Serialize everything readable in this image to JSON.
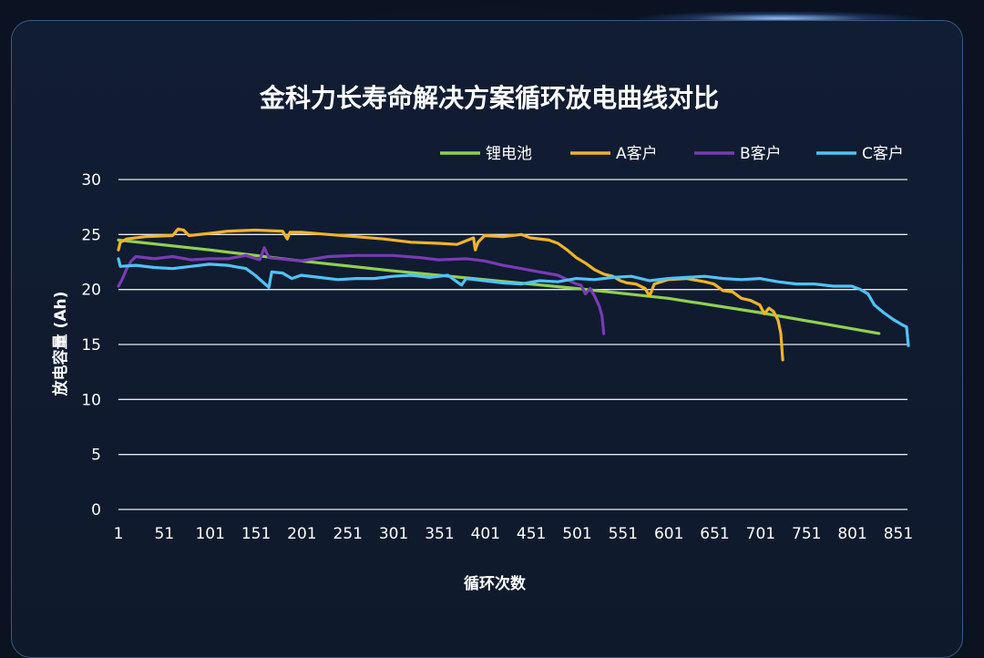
{
  "chart_data": {
    "type": "line",
    "title": "金科力长寿命解决方案循环放电曲线对比",
    "xlabel": "循环次数",
    "ylabel": "放电容量 (Ah)",
    "xlim": [
      1,
      861
    ],
    "ylim": [
      0,
      30
    ],
    "x_ticks": [
      "1",
      "51",
      "101",
      "151",
      "201",
      "251",
      "301",
      "351",
      "401",
      "451",
      "501",
      "551",
      "601",
      "651",
      "701",
      "751",
      "801",
      "851"
    ],
    "y_ticks": [
      "0",
      "5",
      "10",
      "15",
      "20",
      "25",
      "30"
    ],
    "grid": "horizontal",
    "legend_position": "top-right",
    "series": [
      {
        "name": "锂电池",
        "color": "#8fd14f",
        "points": [
          [
            1,
            24.5
          ],
          [
            100,
            23.6
          ],
          [
            200,
            22.6
          ],
          [
            300,
            21.7
          ],
          [
            400,
            20.9
          ],
          [
            500,
            20.1
          ],
          [
            600,
            19.2
          ],
          [
            700,
            17.9
          ],
          [
            830,
            16.0
          ]
        ]
      },
      {
        "name": "A客户",
        "color": "#f0b429",
        "points": [
          [
            1,
            23.6
          ],
          [
            3,
            24.3
          ],
          [
            10,
            24.6
          ],
          [
            30,
            24.8
          ],
          [
            60,
            24.9
          ],
          [
            66,
            25.5
          ],
          [
            72,
            25.4
          ],
          [
            78,
            24.9
          ],
          [
            100,
            25.1
          ],
          [
            120,
            25.3
          ],
          [
            150,
            25.4
          ],
          [
            180,
            25.3
          ],
          [
            185,
            24.6
          ],
          [
            188,
            25.2
          ],
          [
            200,
            25.2
          ],
          [
            230,
            25.0
          ],
          [
            260,
            24.8
          ],
          [
            290,
            24.6
          ],
          [
            320,
            24.3
          ],
          [
            350,
            24.2
          ],
          [
            370,
            24.1
          ],
          [
            388,
            24.7
          ],
          [
            390,
            23.6
          ],
          [
            393,
            24.3
          ],
          [
            400,
            24.9
          ],
          [
            420,
            24.8
          ],
          [
            440,
            25.0
          ],
          [
            450,
            24.7
          ],
          [
            470,
            24.5
          ],
          [
            480,
            24.2
          ],
          [
            490,
            23.6
          ],
          [
            500,
            22.9
          ],
          [
            510,
            22.4
          ],
          [
            520,
            21.8
          ],
          [
            530,
            21.4
          ],
          [
            540,
            21.2
          ],
          [
            548,
            20.8
          ],
          [
            555,
            20.6
          ],
          [
            565,
            20.5
          ],
          [
            575,
            20.1
          ],
          [
            580,
            19.4
          ],
          [
            585,
            20.5
          ],
          [
            600,
            20.9
          ],
          [
            620,
            21.0
          ],
          [
            640,
            20.7
          ],
          [
            650,
            20.5
          ],
          [
            660,
            19.9
          ],
          [
            670,
            19.8
          ],
          [
            680,
            19.2
          ],
          [
            690,
            19.0
          ],
          [
            700,
            18.6
          ],
          [
            705,
            17.8
          ],
          [
            710,
            18.3
          ],
          [
            715,
            18.0
          ],
          [
            720,
            17.2
          ],
          [
            723,
            16.0
          ],
          [
            725,
            13.6
          ]
        ]
      },
      {
        "name": "B客户",
        "color": "#7a3bb4",
        "points": [
          [
            1,
            20.3
          ],
          [
            5,
            20.9
          ],
          [
            10,
            21.9
          ],
          [
            15,
            22.6
          ],
          [
            20,
            23.0
          ],
          [
            40,
            22.8
          ],
          [
            60,
            23.0
          ],
          [
            80,
            22.7
          ],
          [
            100,
            22.8
          ],
          [
            120,
            22.8
          ],
          [
            140,
            23.1
          ],
          [
            155,
            22.7
          ],
          [
            160,
            23.8
          ],
          [
            165,
            22.9
          ],
          [
            200,
            22.6
          ],
          [
            230,
            23.0
          ],
          [
            260,
            23.1
          ],
          [
            300,
            23.1
          ],
          [
            330,
            22.9
          ],
          [
            350,
            22.7
          ],
          [
            380,
            22.8
          ],
          [
            400,
            22.6
          ],
          [
            420,
            22.2
          ],
          [
            440,
            21.9
          ],
          [
            460,
            21.6
          ],
          [
            480,
            21.3
          ],
          [
            490,
            20.9
          ],
          [
            500,
            20.5
          ],
          [
            505,
            20.4
          ],
          [
            510,
            19.6
          ],
          [
            515,
            20.1
          ],
          [
            520,
            19.4
          ],
          [
            525,
            18.5
          ],
          [
            528,
            17.6
          ],
          [
            530,
            16.0
          ]
        ]
      },
      {
        "name": "C客户",
        "color": "#4fc3f7",
        "points": [
          [
            1,
            22.8
          ],
          [
            3,
            22.1
          ],
          [
            20,
            22.2
          ],
          [
            40,
            22.0
          ],
          [
            60,
            21.9
          ],
          [
            80,
            22.1
          ],
          [
            100,
            22.3
          ],
          [
            120,
            22.2
          ],
          [
            140,
            21.9
          ],
          [
            150,
            21.3
          ],
          [
            165,
            20.2
          ],
          [
            168,
            21.6
          ],
          [
            180,
            21.5
          ],
          [
            190,
            21.0
          ],
          [
            200,
            21.3
          ],
          [
            220,
            21.1
          ],
          [
            240,
            20.9
          ],
          [
            260,
            21.0
          ],
          [
            280,
            21.0
          ],
          [
            300,
            21.2
          ],
          [
            320,
            21.3
          ],
          [
            340,
            21.1
          ],
          [
            360,
            21.3
          ],
          [
            375,
            20.4
          ],
          [
            380,
            21.0
          ],
          [
            400,
            20.8
          ],
          [
            420,
            20.6
          ],
          [
            440,
            20.5
          ],
          [
            460,
            20.8
          ],
          [
            480,
            20.7
          ],
          [
            500,
            21.0
          ],
          [
            520,
            20.9
          ],
          [
            540,
            21.1
          ],
          [
            560,
            21.2
          ],
          [
            580,
            20.8
          ],
          [
            600,
            21.0
          ],
          [
            620,
            21.1
          ],
          [
            640,
            21.2
          ],
          [
            660,
            21.0
          ],
          [
            680,
            20.9
          ],
          [
            700,
            21.0
          ],
          [
            720,
            20.7
          ],
          [
            740,
            20.5
          ],
          [
            760,
            20.5
          ],
          [
            780,
            20.3
          ],
          [
            800,
            20.3
          ],
          [
            810,
            20.0
          ],
          [
            818,
            19.6
          ],
          [
            825,
            18.6
          ],
          [
            835,
            17.9
          ],
          [
            845,
            17.3
          ],
          [
            855,
            16.8
          ],
          [
            860,
            16.6
          ],
          [
            862,
            14.9
          ]
        ]
      }
    ]
  },
  "legend": {
    "items": [
      {
        "label": "锂电池",
        "color": "#8fd14f"
      },
      {
        "label": "A客户",
        "color": "#f0b429"
      },
      {
        "label": "B客户",
        "color": "#7a3bb4"
      },
      {
        "label": "C客户",
        "color": "#4fc3f7"
      }
    ]
  },
  "colors": {
    "background": "#0b1220",
    "grid": "#e6e9ef",
    "text": "#ffffff",
    "frame_border": "#3c5a86"
  }
}
